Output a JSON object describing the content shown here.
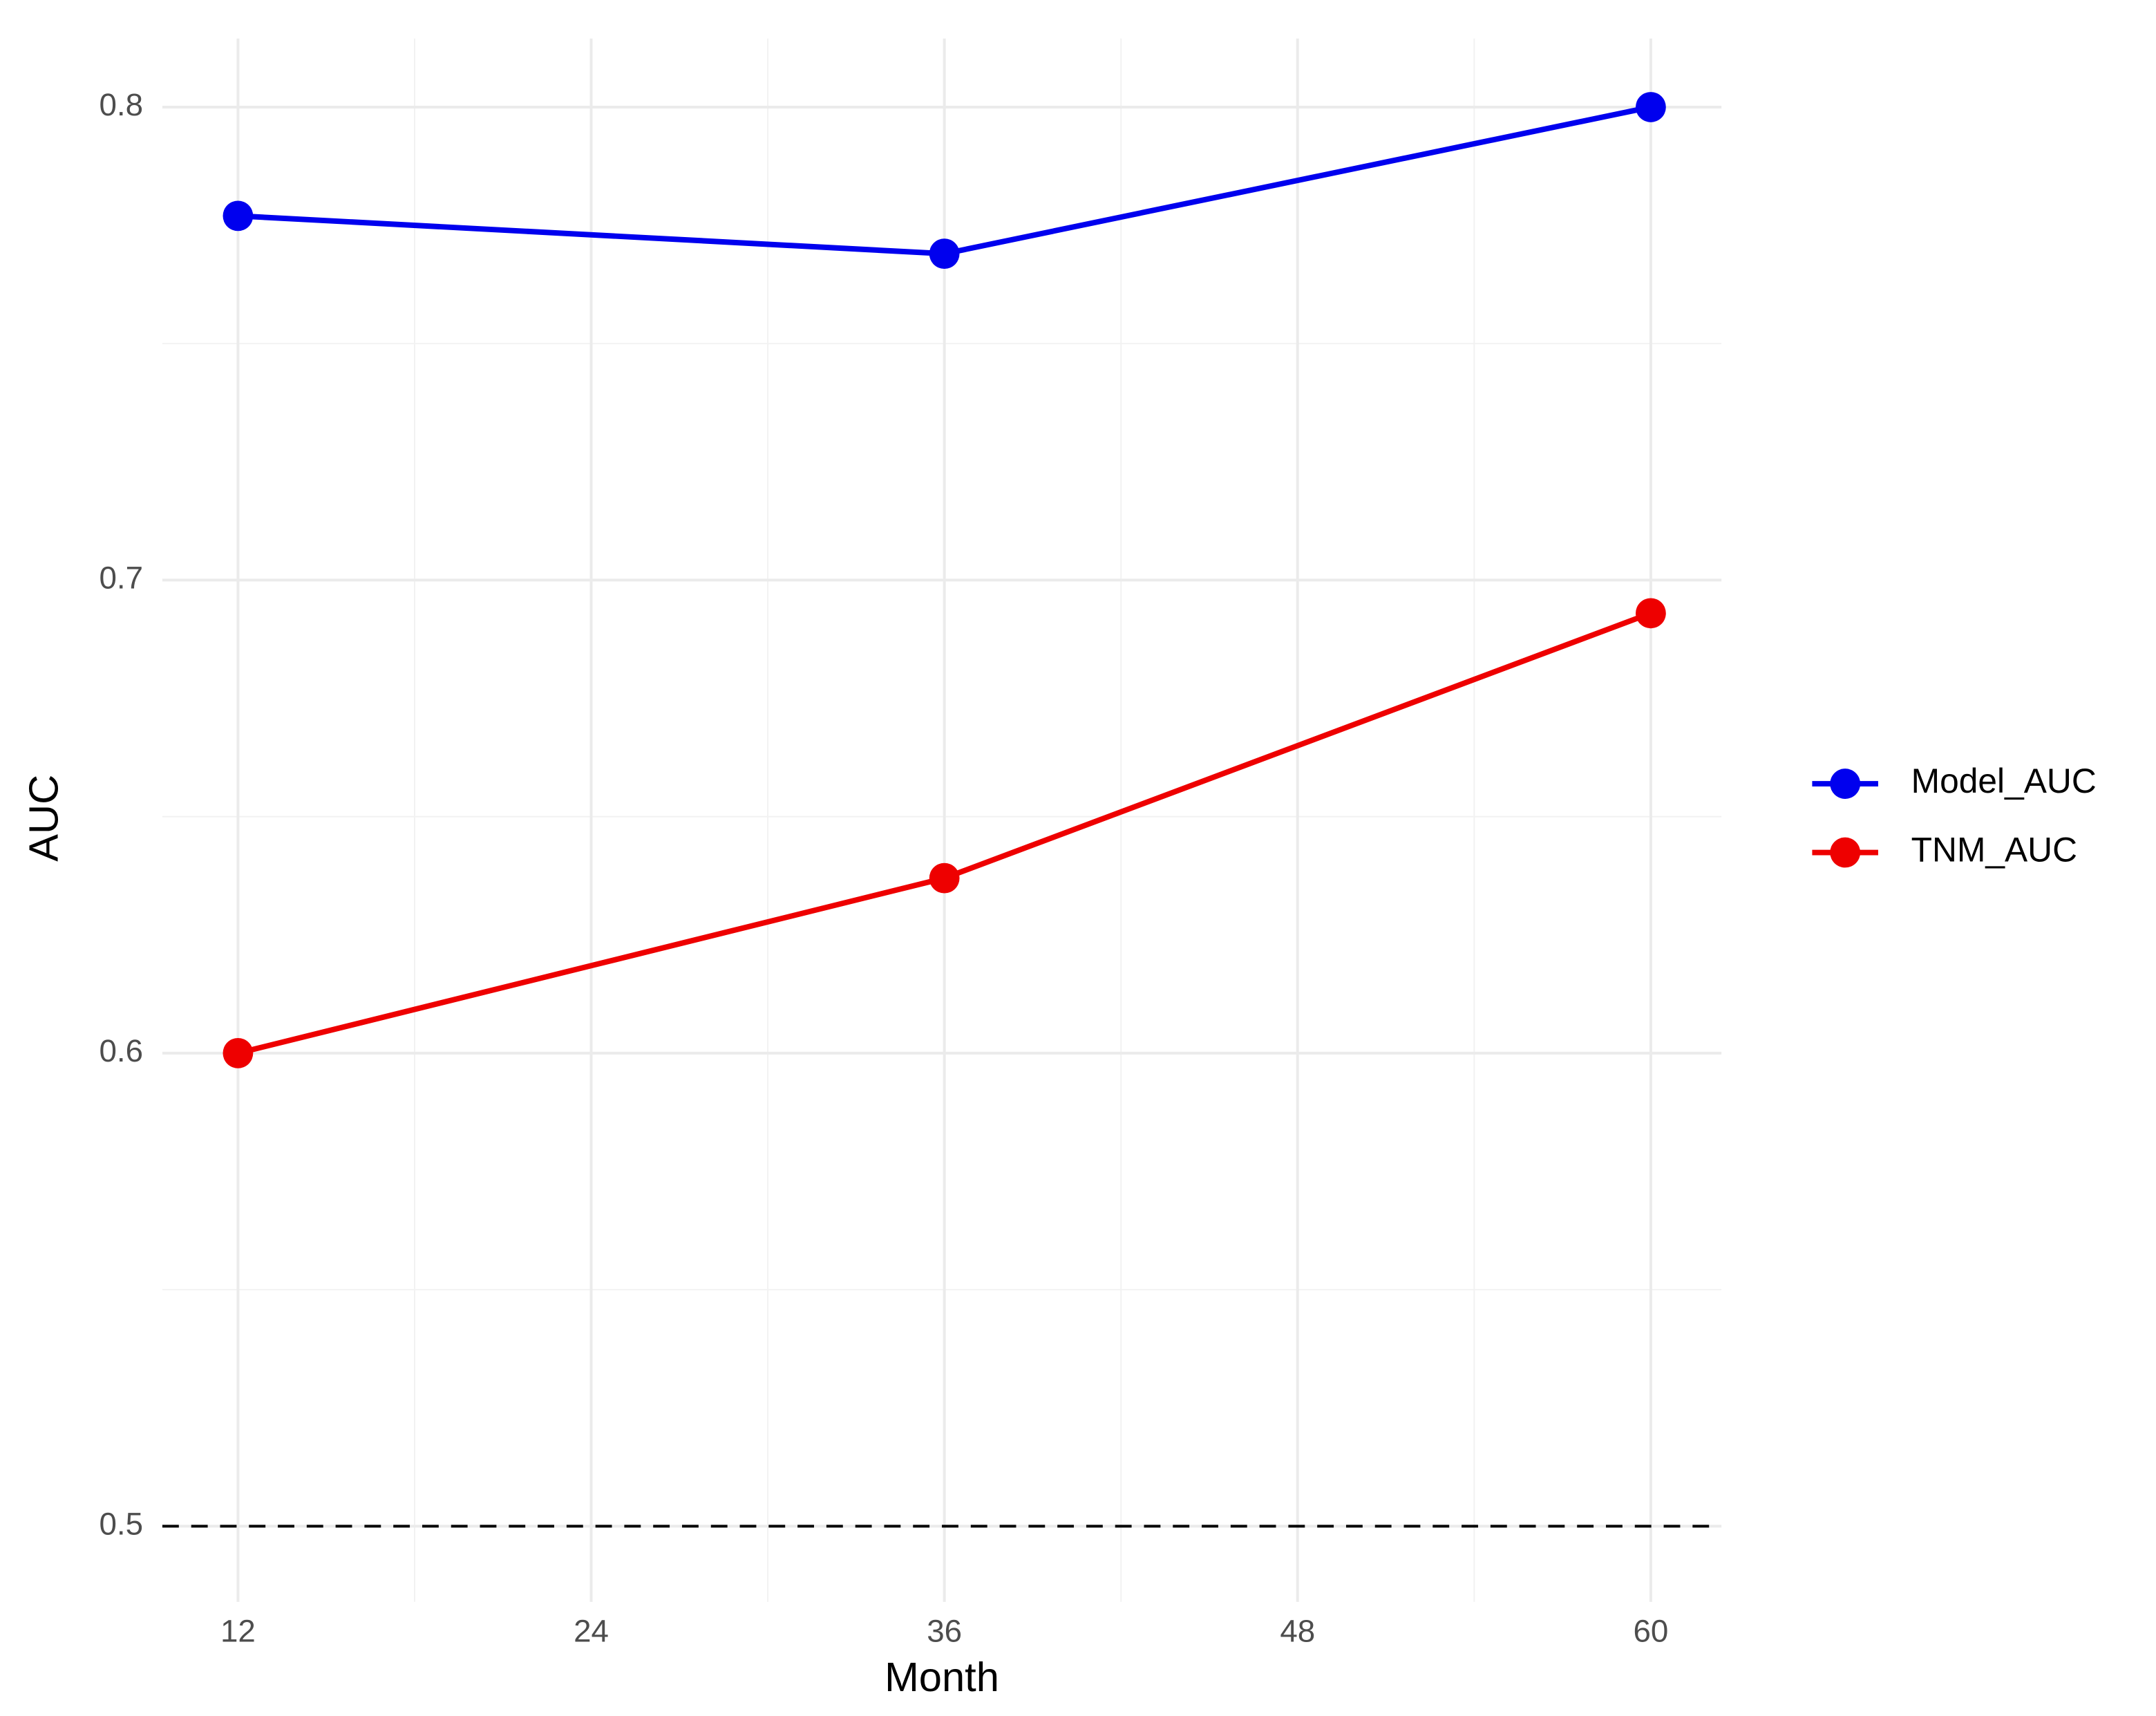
{
  "chart_data": {
    "type": "line",
    "x_label": "Month",
    "y_label": "AUC",
    "x": [
      12,
      36,
      60
    ],
    "series": [
      {
        "name": "Model_AUC",
        "color": "#0000ee",
        "values": [
          0.777,
          0.769,
          0.8
        ]
      },
      {
        "name": "TNM_AUC",
        "color": "#ee0000",
        "values": [
          0.6,
          0.637,
          0.693
        ]
      }
    ],
    "xlim": [
      9.43,
      62.4
    ],
    "xticks": [
      12,
      24,
      36,
      48,
      60
    ],
    "xminorticks": [
      18,
      30,
      42,
      54
    ],
    "ylim": [
      0.484,
      0.8145
    ],
    "yticks": [
      0.5,
      0.6,
      0.7,
      0.8
    ],
    "yminorticks": [
      0.55,
      0.65,
      0.75
    ],
    "hline": 0.5,
    "grid": true,
    "legend": "right"
  }
}
